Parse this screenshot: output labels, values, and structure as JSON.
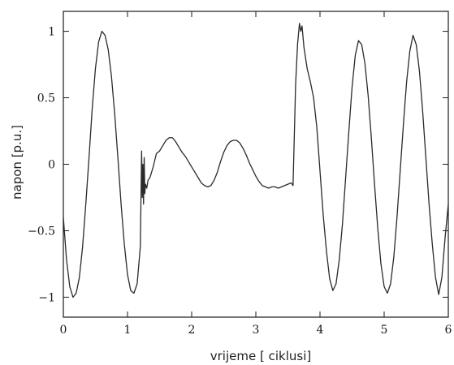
{
  "chart_data": {
    "type": "line",
    "title": "",
    "xlabel": "vrijeme [ ciklusi]",
    "ylabel": "napon [p.u.]",
    "xlim": [
      0,
      6
    ],
    "ylim": [
      -1.15,
      1.15
    ],
    "x_ticks": [
      0,
      1,
      2,
      3,
      4,
      5,
      6
    ],
    "x_tick_labels": [
      "0",
      "1",
      "2",
      "3",
      "4",
      "5",
      "6"
    ],
    "y_ticks": [
      1,
      0.5,
      0,
      -0.5,
      -1
    ],
    "y_tick_labels": [
      "1",
      "0.5",
      "0",
      "−0.5",
      "−1"
    ],
    "grid": false,
    "legend": "none",
    "line_color": "#2a2a2a",
    "series": [
      {
        "x": [
          0,
          0.05,
          0.1,
          0.15,
          0.2,
          0.25,
          0.3,
          0.35,
          0.4,
          0.45,
          0.5,
          0.55,
          0.6,
          0.65,
          0.7,
          0.75,
          0.8,
          0.85,
          0.9,
          0.95,
          1.0,
          1.05,
          1.1,
          1.15,
          1.2,
          1.22,
          1.23,
          1.24,
          1.25,
          1.26,
          1.27,
          1.28,
          1.3,
          1.32,
          1.35,
          1.4,
          1.45,
          1.5,
          1.55,
          1.6,
          1.65,
          1.7,
          1.75,
          1.8,
          1.85,
          1.9,
          1.95,
          2.0,
          2.05,
          2.1,
          2.15,
          2.2,
          2.25,
          2.3,
          2.35,
          2.4,
          2.45,
          2.5,
          2.55,
          2.6,
          2.65,
          2.7,
          2.75,
          2.8,
          2.85,
          2.9,
          2.95,
          3.0,
          3.05,
          3.1,
          3.15,
          3.2,
          3.25,
          3.3,
          3.35,
          3.4,
          3.45,
          3.5,
          3.55,
          3.58,
          3.6,
          3.62,
          3.65,
          3.68,
          3.7,
          3.72,
          3.75,
          3.8,
          3.85,
          3.9,
          3.95,
          4.0,
          4.05,
          4.1,
          4.15,
          4.2,
          4.25,
          4.3,
          4.35,
          4.4,
          4.45,
          4.5,
          4.55,
          4.6,
          4.65,
          4.7,
          4.75,
          4.8,
          4.85,
          4.9,
          4.95,
          5.0,
          5.05,
          5.1,
          5.15,
          5.2,
          5.25,
          5.3,
          5.35,
          5.4,
          5.45,
          5.5,
          5.55,
          5.6,
          5.65,
          5.7,
          5.75,
          5.8,
          5.85,
          5.9,
          5.95,
          6.0
        ],
        "y": [
          -0.4,
          -0.72,
          -0.92,
          -1.0,
          -0.97,
          -0.85,
          -0.62,
          -0.3,
          0.05,
          0.42,
          0.72,
          0.92,
          1.0,
          0.97,
          0.86,
          0.66,
          0.38,
          0.05,
          -0.3,
          -0.6,
          -0.83,
          -0.95,
          -0.97,
          -0.9,
          -0.62,
          0.1,
          -0.25,
          0.0,
          -0.3,
          0.05,
          -0.22,
          -0.15,
          -0.18,
          -0.12,
          -0.1,
          -0.02,
          0.08,
          0.1,
          0.14,
          0.18,
          0.2,
          0.2,
          0.17,
          0.13,
          0.09,
          0.06,
          0.02,
          -0.02,
          -0.06,
          -0.1,
          -0.14,
          -0.16,
          -0.17,
          -0.16,
          -0.12,
          -0.06,
          0.02,
          0.09,
          0.14,
          0.17,
          0.18,
          0.18,
          0.16,
          0.12,
          0.07,
          0.01,
          -0.04,
          -0.09,
          -0.13,
          -0.16,
          -0.17,
          -0.18,
          -0.17,
          -0.17,
          -0.18,
          -0.17,
          -0.16,
          -0.15,
          -0.14,
          -0.16,
          0.22,
          0.6,
          0.9,
          1.06,
          1.0,
          1.04,
          0.88,
          0.72,
          0.62,
          0.5,
          0.28,
          -0.05,
          -0.38,
          -0.65,
          -0.86,
          -0.95,
          -0.9,
          -0.72,
          -0.45,
          -0.1,
          0.25,
          0.58,
          0.82,
          0.93,
          0.9,
          0.76,
          0.52,
          0.2,
          -0.15,
          -0.48,
          -0.75,
          -0.92,
          -0.97,
          -0.9,
          -0.7,
          -0.4,
          -0.05,
          0.3,
          0.62,
          0.85,
          0.97,
          0.9,
          0.7,
          0.4,
          0.05,
          -0.3,
          -0.6,
          -0.85,
          -0.98,
          -0.85,
          -0.55,
          -0.3
        ]
      }
    ]
  }
}
